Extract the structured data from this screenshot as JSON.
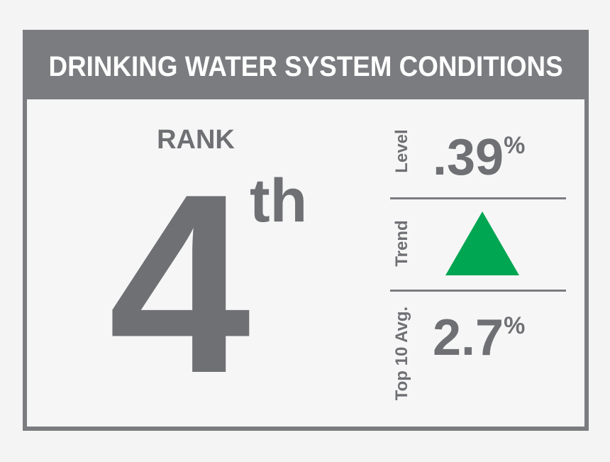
{
  "header": {
    "title": "DRINKING WATER SYSTEM CONDITIONS"
  },
  "rank": {
    "label": "RANK",
    "number": "4",
    "suffix": "th"
  },
  "metrics": {
    "level": {
      "label": "Level",
      "value": ".39",
      "unit": "%"
    },
    "trend": {
      "label": "Trend",
      "icon": "up-triangle-icon",
      "color": "#00a651"
    },
    "top10": {
      "label": "Top 10 Avg.",
      "value": "2.7",
      "unit": "%"
    }
  },
  "colors": {
    "frame": "#7b7c80",
    "text": "#6f7074",
    "background": "#f6f6f6",
    "trend_up": "#00a651"
  }
}
